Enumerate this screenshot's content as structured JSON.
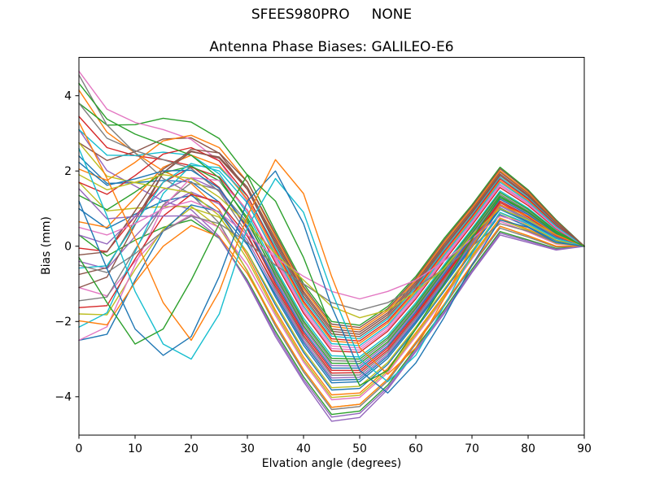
{
  "figure": {
    "suptitle": "SFEES980PRO     NONE",
    "background": "#ffffff",
    "text_color": "#000000"
  },
  "chart_data": {
    "type": "line",
    "title": "Antenna Phase Biases: GALILEO-E6",
    "xlabel": "Elvation angle (degrees)",
    "ylabel": "Bias (mm)",
    "xlim": [
      0,
      90
    ],
    "ylim": [
      -5.02,
      5.02
    ],
    "xticks": [
      0,
      10,
      20,
      30,
      40,
      50,
      60,
      70,
      80,
      90
    ],
    "yticks": [
      -4,
      -2,
      0,
      2,
      4
    ],
    "grid": false,
    "legend_position": "none",
    "palette": [
      "#1f77b4",
      "#ff7f0e",
      "#2ca02c",
      "#d62728",
      "#9467bd",
      "#8c564b",
      "#e377c2",
      "#7f7f7f",
      "#bcbd22",
      "#17becf"
    ],
    "x": [
      0,
      5,
      10,
      15,
      20,
      25,
      30,
      35,
      40,
      45,
      50,
      55,
      60,
      65,
      70,
      75,
      80,
      85,
      90
    ],
    "series": [
      {
        "values": [
          2.4,
          1.67,
          1.69,
          1.75,
          1.71,
          1.17,
          0.07,
          -1.35,
          -2.63,
          -3.63,
          -3.6,
          -2.98,
          -2.05,
          -1.05,
          -0.03,
          0.98,
          0.63,
          0.2,
          0
        ]
      },
      {
        "values": [
          4.15,
          3.03,
          2.48,
          2.0,
          1.67,
          0.97,
          -0.25,
          -1.7,
          -2.95,
          -3.95,
          -3.9,
          -3.25,
          -2.3,
          -1.3,
          -0.25,
          0.75,
          0.45,
          0.1,
          0
        ]
      },
      {
        "values": [
          3.8,
          3.22,
          3.23,
          3.4,
          3.3,
          2.86,
          1.89,
          0.4,
          -1.0,
          -2.0,
          -2.1,
          -1.6,
          -0.8,
          0.2,
          1.1,
          2.1,
          1.5,
          0.7,
          0
        ]
      },
      {
        "values": [
          3.45,
          2.62,
          2.41,
          2.3,
          2.14,
          1.56,
          0.45,
          -1.0,
          -2.3,
          -3.3,
          -3.3,
          -2.7,
          -1.8,
          -0.8,
          0.2,
          1.2,
          0.8,
          0.3,
          0
        ]
      },
      {
        "values": [
          3.1,
          2.01,
          1.6,
          1.2,
          0.97,
          0.26,
          -0.98,
          -2.4,
          -3.6,
          -4.65,
          -4.55,
          -3.8,
          -2.8,
          -1.8,
          -0.7,
          0.3,
          0.1,
          -0.1,
          0
        ]
      },
      {
        "values": [
          2.75,
          2.28,
          2.51,
          2.85,
          2.88,
          2.47,
          1.51,
          0.05,
          -1.33,
          -2.33,
          -2.4,
          -1.88,
          -1.05,
          -0.05,
          0.88,
          1.88,
          1.33,
          0.6,
          0
        ]
      },
      {
        "values": [
          4.65,
          3.64,
          3.29,
          3.1,
          2.84,
          2.26,
          1.19,
          -0.3,
          -1.65,
          -2.65,
          -2.7,
          -2.15,
          -1.3,
          -0.3,
          0.65,
          1.65,
          1.15,
          0.5,
          0
        ]
      },
      {
        "values": [
          4.55,
          3.22,
          2.48,
          1.8,
          1.38,
          0.61,
          -0.67,
          -2.12,
          -3.34,
          -4.34,
          -4.26,
          -3.58,
          -2.6,
          -1.6,
          -0.52,
          0.48,
          0.24,
          -0.02,
          0
        ]
      },
      {
        "values": [
          1.7,
          0.94,
          1.01,
          1.05,
          1.06,
          0.49,
          -0.65,
          -2.05,
          -3.28,
          -4.28,
          -4.2,
          -3.53,
          -2.55,
          -1.55,
          -0.48,
          0.53,
          0.28,
          0.0,
          0
        ]
      },
      {
        "values": [
          3.1,
          2.42,
          2.41,
          2.5,
          2.42,
          1.92,
          0.87,
          -0.58,
          -1.91,
          -2.91,
          -2.94,
          -2.37,
          -1.5,
          -0.5,
          0.47,
          1.47,
          1.01,
          0.42,
          0
        ]
      },
      {
        "values": [
          1.0,
          0.47,
          0.85,
          1.2,
          1.35,
          0.89,
          -0.17,
          -1.56,
          -2.82,
          -3.82,
          -3.78,
          -3.14,
          -2.2,
          -1.2,
          -0.16,
          0.84,
          0.52,
          0.14,
          0
        ]
      },
      {
        "values": [
          0.65,
          0.5,
          1.29,
          2.1,
          2.42,
          2.14,
          1.25,
          -0.16,
          -1.52,
          -2.52,
          -2.58,
          -2.04,
          -1.2,
          -0.2,
          0.74,
          1.74,
          1.22,
          0.54,
          0
        ]
      },
      {
        "values": [
          0.3,
          -0.26,
          0.16,
          0.5,
          0.7,
          0.21,
          -0.9,
          -2.26,
          -3.47,
          -4.47,
          -4.38,
          -3.69,
          -2.7,
          -1.7,
          -0.61,
          0.39,
          0.17,
          -0.06,
          0
        ]
      },
      {
        "values": [
          -0.05,
          -0.14,
          0.79,
          1.7,
          2.1,
          1.84,
          0.95,
          -0.44,
          -1.78,
          -2.78,
          -2.82,
          -2.26,
          -1.4,
          -0.4,
          0.56,
          1.56,
          1.08,
          0.46,
          0
        ]
      },
      {
        "values": [
          -0.4,
          -0.6,
          0.26,
          1.05,
          1.44,
          1.12,
          0.16,
          -1.21,
          -2.5,
          -3.5,
          -3.48,
          -2.87,
          -1.95,
          -0.95,
          0.07,
          1.07,
          0.7,
          0.24,
          0
        ]
      },
      {
        "values": [
          -0.75,
          -0.57,
          0.69,
          1.95,
          2.51,
          2.37,
          1.57,
          0.19,
          -1.2,
          -2.2,
          -2.28,
          -1.77,
          -0.95,
          0.05,
          0.97,
          1.97,
          1.4,
          0.64,
          0
        ]
      },
      {
        "values": [
          -1.1,
          -1.32,
          -0.4,
          0.4,
          0.84,
          0.5,
          -0.5,
          -1.84,
          -3.08,
          -4.08,
          -4.02,
          -3.36,
          -2.4,
          -1.4,
          -0.34,
          0.66,
          0.38,
          0.06,
          0
        ]
      },
      {
        "values": [
          -1.45,
          -1.35,
          -0.09,
          1.1,
          1.69,
          1.5,
          0.63,
          -0.72,
          -2.04,
          -3.04,
          -3.06,
          -2.48,
          -1.6,
          -0.6,
          0.38,
          1.38,
          0.94,
          0.38,
          0
        ]
      },
      {
        "values": [
          -1.8,
          -1.82,
          -0.62,
          0.45,
          1.02,
          0.77,
          -0.16,
          -1.49,
          -2.76,
          -3.76,
          -3.72,
          -3.09,
          -2.15,
          -1.15,
          -0.12,
          0.89,
          0.56,
          0.16,
          0
        ]
      },
      {
        "values": [
          -2.15,
          -1.77,
          -0.15,
          1.4,
          2.15,
          2.09,
          1.33,
          -0.02,
          -1.39,
          -2.39,
          -2.46,
          -1.93,
          -1.1,
          -0.1,
          0.83,
          1.83,
          1.29,
          0.58,
          0
        ]
      },
      {
        "values": [
          -2.5,
          -2.34,
          -0.9,
          0.4,
          1.1,
          0.92,
          0.04,
          -1.28,
          -2.56,
          -3.56,
          -3.54,
          -2.92,
          -2.0,
          -1.0,
          0.02,
          1.02,
          0.66,
          0.22,
          0
        ]
      },
      {
        "values": [
          2.05,
          1.75,
          2.23,
          2.8,
          2.95,
          2.62,
          1.71,
          0.26,
          -1.13,
          -2.13,
          -2.22,
          -1.71,
          -0.9,
          0.1,
          1.01,
          2.01,
          1.43,
          0.66,
          0
        ]
      },
      {
        "values": [
          1.35,
          0.97,
          1.44,
          1.95,
          2.13,
          1.74,
          0.76,
          -0.65,
          -1.98,
          -2.98,
          -3.0,
          -2.43,
          -1.55,
          -0.55,
          0.43,
          1.43,
          0.98,
          0.4,
          0
        ]
      },
      {
        "values": [
          1.7,
          1.38,
          1.88,
          2.45,
          2.62,
          2.27,
          1.34,
          -0.09,
          -1.46,
          -2.46,
          -2.52,
          -1.99,
          -1.15,
          -0.15,
          0.79,
          1.79,
          1.26,
          0.56,
          0
        ]
      },
      {
        "values": [
          0.3,
          0.06,
          0.79,
          1.5,
          1.82,
          1.48,
          0.53,
          -0.86,
          -2.17,
          -3.17,
          -3.18,
          -2.59,
          -1.7,
          -0.7,
          0.29,
          1.29,
          0.87,
          0.34,
          0
        ]
      },
      {
        "values": [
          -1.1,
          -0.82,
          0.57,
          1.95,
          2.58,
          2.48,
          1.71,
          0.33,
          -1.07,
          -2.07,
          -2.16,
          -1.66,
          -0.85,
          0.15,
          1.06,
          2.06,
          1.47,
          0.68,
          0
        ]
      },
      {
        "values": [
          -2.5,
          -2.14,
          -0.49,
          1.05,
          1.82,
          1.75,
          0.97,
          -0.37,
          -1.72,
          -2.72,
          -2.76,
          -2.21,
          -1.35,
          -0.35,
          0.61,
          1.61,
          1.12,
          0.48,
          0
        ]
      },
      {
        "values": [
          3.8,
          2.87,
          2.54,
          2.3,
          2.07,
          1.45,
          0.32,
          -1.14,
          -2.43,
          -3.43,
          -3.42,
          -2.81,
          -1.9,
          -0.9,
          0.11,
          1.11,
          0.73,
          0.26,
          0
        ]
      },
      {
        "values": [
          2.75,
          1.86,
          1.69,
          1.55,
          1.42,
          0.81,
          -0.35,
          -1.77,
          -3.02,
          -4.02,
          -3.96,
          -3.31,
          -2.35,
          -1.35,
          -0.3,
          0.71,
          0.42,
          0.08,
          0
        ]
      },
      {
        "values": [
          -0.58,
          -0.52,
          0.6,
          1.7,
          2.2,
          2.0,
          1.15,
          -0.23,
          -1.59,
          -2.59,
          -2.64,
          -2.1,
          -1.25,
          -0.25,
          0.7,
          1.7,
          1.19,
          0.52,
          0
        ]
      },
      {
        "values": [
          2.23,
          1.62,
          1.79,
          2.0,
          2.02,
          1.54,
          0.5,
          -0.93,
          -2.24,
          -3.24,
          -3.24,
          -2.65,
          -1.75,
          -0.75,
          0.25,
          1.25,
          0.84,
          0.32,
          0
        ]
      },
      {
        "values": [
          -1.98,
          -2.09,
          -0.96,
          0.0,
          0.55,
          0.25,
          -0.73,
          -2.05,
          -3.28,
          -4.28,
          -4.2,
          -3.53,
          -2.55,
          -1.55,
          -0.48,
          0.53,
          0.28,
          0.0,
          0
        ]
      },
      {
        "values": [
          4.33,
          3.38,
          2.98,
          2.7,
          2.42,
          1.81,
          0.69,
          -0.79,
          -2.11,
          -3.11,
          -3.12,
          -2.54,
          -1.65,
          -0.65,
          0.34,
          1.34,
          0.91,
          0.36,
          0
        ]
      },
      {
        "values": [
          -1.63,
          -1.58,
          -0.34,
          0.8,
          1.38,
          1.17,
          0.27,
          -1.07,
          -2.37,
          -3.37,
          -3.36,
          -2.76,
          -1.85,
          -0.85,
          0.16,
          1.16,
          0.77,
          0.28,
          0
        ]
      },
      {
        "values": [
          1.53,
          0.73,
          0.79,
          0.8,
          0.81,
          0.22,
          -0.94,
          -2.33,
          -3.54,
          -4.54,
          -4.44,
          -3.75,
          -2.75,
          -1.75,
          -0.66,
          0.35,
          0.14,
          -0.08,
          0
        ]
      },
      {
        "values": [
          -0.23,
          -0.15,
          0.94,
          2.05,
          2.53,
          2.34,
          1.51,
          0.12,
          -1.26,
          -2.26,
          -2.34,
          -1.82,
          -1.0,
          0.0,
          0.92,
          1.92,
          1.36,
          0.62,
          0
        ]
      },
      {
        "values": [
          0.5,
          0.3,
          0.6,
          1.0,
          1.2,
          0.9,
          0.3,
          -0.3,
          -0.8,
          -1.2,
          -1.4,
          -1.2,
          -0.9,
          -0.4,
          0.2,
          0.8,
          0.6,
          0.2,
          0
        ]
      },
      {
        "values": [
          -0.5,
          -0.7,
          -0.2,
          0.4,
          0.8,
          0.6,
          0.1,
          -0.5,
          -1.0,
          -1.5,
          -1.7,
          -1.5,
          -1.1,
          -0.6,
          0.0,
          0.6,
          0.4,
          0.1,
          0
        ]
      },
      {
        "values": [
          1.9,
          1.5,
          1.7,
          1.9,
          1.8,
          1.3,
          0.6,
          -0.2,
          -0.9,
          -1.6,
          -1.9,
          -1.7,
          -1.2,
          -0.6,
          0.3,
          1.0,
          0.7,
          0.3,
          0
        ]
      },
      {
        "values": [
          2.6,
          0.8,
          -1.2,
          -2.6,
          -3.0,
          -1.8,
          0.5,
          1.8,
          0.9,
          -1.2,
          -3.0,
          -3.6,
          -2.9,
          -1.6,
          -0.2,
          0.9,
          0.6,
          0.2,
          0
        ]
      },
      {
        "values": [
          1.2,
          -0.6,
          -2.2,
          -2.9,
          -2.4,
          -0.8,
          1.2,
          2.0,
          0.6,
          -1.6,
          -3.3,
          -3.9,
          -3.1,
          -1.9,
          -0.5,
          0.7,
          0.5,
          0.1,
          0
        ]
      },
      {
        "values": [
          3.3,
          1.8,
          0.2,
          -1.5,
          -2.5,
          -1.2,
          0.8,
          2.3,
          1.4,
          -0.8,
          -2.7,
          -3.4,
          -2.7,
          -1.4,
          0.0,
          1.1,
          0.8,
          0.3,
          0
        ]
      },
      {
        "values": [
          -0.3,
          -1.5,
          -2.6,
          -2.2,
          -0.9,
          0.6,
          1.9,
          1.2,
          -0.3,
          -2.2,
          -3.7,
          -3.3,
          -2.2,
          -1.0,
          0.2,
          1.3,
          0.9,
          0.35,
          0
        ]
      }
    ]
  }
}
